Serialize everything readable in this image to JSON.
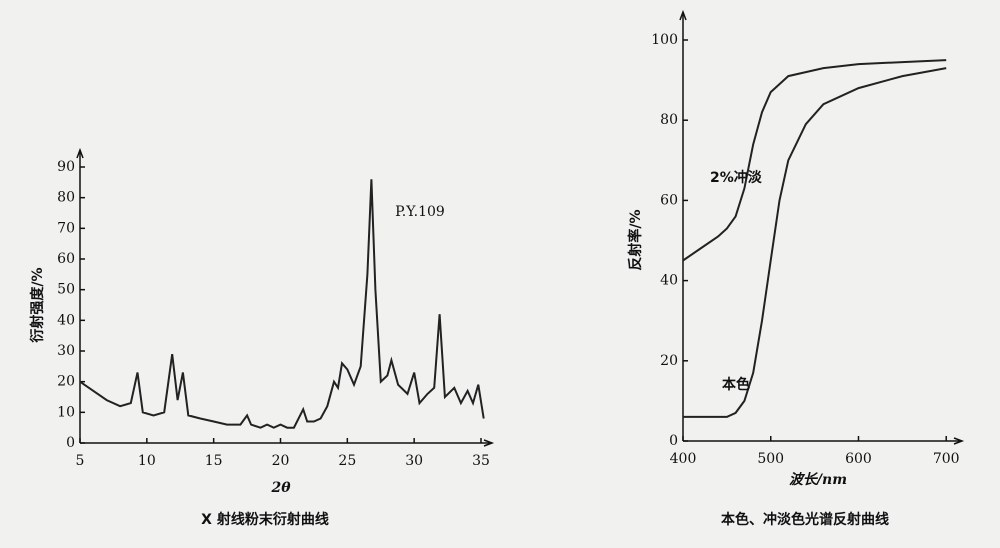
{
  "chart_data": [
    {
      "type": "line",
      "y_label": "衍射强度/%",
      "x_label": "2θ",
      "caption": "X 射线粉末衍射曲线",
      "annotation": "P.Y.109",
      "color": "#222222",
      "x": [
        5,
        6,
        7,
        8,
        8.8,
        9.3,
        9.7,
        10.5,
        11.3,
        11.9,
        12.3,
        12.7,
        13.1,
        14,
        15,
        16,
        17,
        17.5,
        17.8,
        18.5,
        19,
        19.5,
        20,
        20.5,
        21,
        21.7,
        22,
        22.5,
        23,
        23.5,
        24,
        24.3,
        24.6,
        25,
        25.5,
        26,
        26.5,
        26.8,
        27.1,
        27.5,
        28,
        28.3,
        28.8,
        29.5,
        30,
        30.4,
        31,
        31.5,
        31.9,
        32.3,
        33,
        33.5,
        34,
        34.4,
        34.8,
        35.2
      ],
      "values": [
        20,
        17,
        14,
        12,
        13,
        23,
        10,
        9,
        10,
        29,
        14,
        23,
        9,
        8,
        7,
        6,
        6,
        9,
        6,
        5,
        6,
        5,
        6,
        5,
        5,
        11,
        7,
        7,
        8,
        12,
        20,
        18,
        26,
        24,
        19,
        25,
        55,
        86,
        50,
        20,
        22,
        27,
        19,
        16,
        23,
        13,
        16,
        18,
        42,
        15,
        18,
        13,
        17,
        13,
        19,
        8
      ],
      "xlim": [
        5,
        35
      ],
      "ylim": [
        0,
        90
      ],
      "xticks": [
        5,
        10,
        15,
        20,
        25,
        30,
        35
      ],
      "yticks": [
        0,
        10,
        20,
        30,
        40,
        50,
        60,
        70,
        80,
        90
      ]
    },
    {
      "type": "line",
      "y_label": "反射率/%",
      "x_label": "波长/nm",
      "caption": "本色、冲淡色光谱反射曲线",
      "x": [
        400,
        420,
        440,
        450,
        460,
        470,
        480,
        490,
        500,
        510,
        520,
        540,
        560,
        600,
        650,
        700
      ],
      "series": [
        {
          "name": "2%冲淡",
          "color": "#222222",
          "values": [
            45,
            48,
            51,
            53,
            56,
            63,
            74,
            82,
            87,
            89,
            91,
            92,
            93,
            94,
            94.5,
            95
          ]
        },
        {
          "name": "本色",
          "color": "#222222",
          "values": [
            6,
            6,
            6,
            6,
            7,
            10,
            17,
            30,
            45,
            60,
            70,
            79,
            84,
            88,
            91,
            93
          ]
        }
      ],
      "xlim": [
        400,
        710
      ],
      "ylim": [
        0,
        100
      ],
      "xticks": [
        400,
        500,
        600,
        700
      ],
      "yticks": [
        0,
        20,
        40,
        60,
        80,
        100
      ]
    }
  ]
}
